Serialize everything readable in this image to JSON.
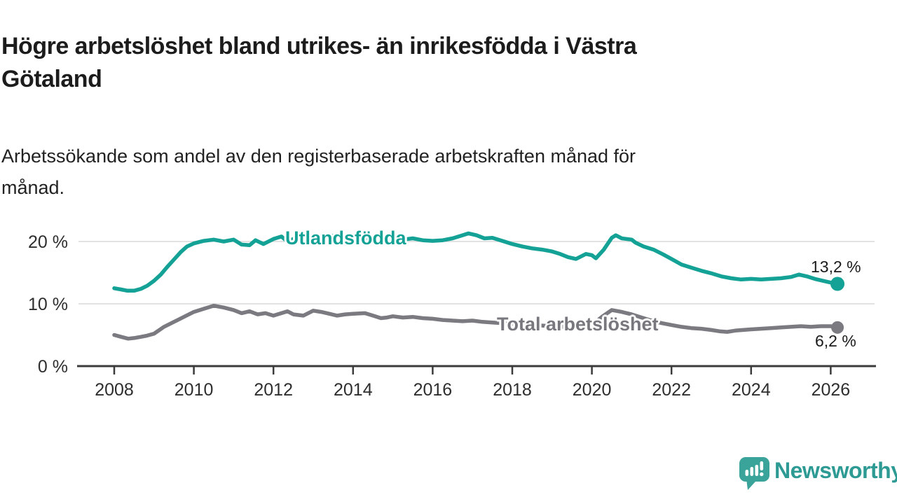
{
  "header": {
    "title": "Högre arbetslöshet bland utrikes- än inrikesfödda i Västra Götaland",
    "title_lines": [
      "Högre arbetslöshet bland utrikes- än inrikesfödda i Västra",
      "Götaland"
    ],
    "subtitle": "Arbetssökande som andel av den registerbaserade arbetskraften månad för månad.",
    "subtitle_lines": [
      "Arbetssökande som andel av den registerbaserade arbetskraften månad för",
      "månad."
    ]
  },
  "chart_data": {
    "type": "line",
    "title": "Högre arbetslöshet bland utrikes- än inrikesfödda i Västra Götaland",
    "subtitle": "Arbetssökande som andel av den registerbaserade arbetskraften månad för månad.",
    "grid": true,
    "legend_position": "inline-labels",
    "x_axis": {
      "ticks": [
        2008,
        2010,
        2012,
        2014,
        2016,
        2018,
        2020,
        2022,
        2024,
        2026
      ],
      "range": [
        2007.1,
        2027.1
      ]
    },
    "y_axis": {
      "ticks": [
        {
          "value": 0,
          "label": "0 %"
        },
        {
          "value": 10,
          "label": "10 %"
        },
        {
          "value": 20,
          "label": "20 %"
        }
      ],
      "range": [
        0,
        22.5
      ],
      "unit": "%"
    },
    "colors": {
      "accent_teal": "#14a296",
      "accent_gray": "#7a7a80",
      "gridline": "#d9d9d9",
      "axis": "#3b3b3b",
      "axis_text": "#2e2e2e"
    },
    "series": [
      {
        "name": "Utlandsfödda",
        "color": "#14a296",
        "end_label": "13,2 %",
        "end_value": 13.2,
        "points": [
          [
            2008.0,
            12.5
          ],
          [
            2008.17,
            12.3
          ],
          [
            2008.33,
            12.1
          ],
          [
            2008.5,
            12.1
          ],
          [
            2008.67,
            12.4
          ],
          [
            2008.83,
            12.9
          ],
          [
            2009.0,
            13.7
          ],
          [
            2009.17,
            14.7
          ],
          [
            2009.33,
            15.9
          ],
          [
            2009.5,
            17.1
          ],
          [
            2009.67,
            18.3
          ],
          [
            2009.83,
            19.2
          ],
          [
            2010.0,
            19.7
          ],
          [
            2010.25,
            20.1
          ],
          [
            2010.5,
            20.3
          ],
          [
            2010.75,
            20.0
          ],
          [
            2011.0,
            20.3
          ],
          [
            2011.2,
            19.5
          ],
          [
            2011.4,
            19.4
          ],
          [
            2011.55,
            20.2
          ],
          [
            2011.75,
            19.6
          ],
          [
            2012.0,
            20.4
          ],
          [
            2012.2,
            20.8
          ],
          [
            2012.35,
            20.0
          ],
          [
            2012.5,
            20.4
          ],
          [
            2012.75,
            20.6
          ],
          [
            2013.0,
            20.9
          ],
          [
            2013.25,
            20.7
          ],
          [
            2013.5,
            20.9
          ],
          [
            2013.75,
            20.6
          ],
          [
            2014.0,
            20.8
          ],
          [
            2014.25,
            20.5
          ],
          [
            2014.5,
            20.7
          ],
          [
            2014.75,
            20.4
          ],
          [
            2015.0,
            20.6
          ],
          [
            2015.25,
            20.3
          ],
          [
            2015.5,
            20.5
          ],
          [
            2015.75,
            20.2
          ],
          [
            2016.0,
            20.1
          ],
          [
            2016.25,
            20.2
          ],
          [
            2016.5,
            20.5
          ],
          [
            2016.75,
            21.0
          ],
          [
            2016.9,
            21.3
          ],
          [
            2017.1,
            21.0
          ],
          [
            2017.3,
            20.5
          ],
          [
            2017.5,
            20.6
          ],
          [
            2017.75,
            20.1
          ],
          [
            2018.0,
            19.6
          ],
          [
            2018.25,
            19.2
          ],
          [
            2018.5,
            18.9
          ],
          [
            2018.75,
            18.7
          ],
          [
            2019.0,
            18.4
          ],
          [
            2019.2,
            18.0
          ],
          [
            2019.4,
            17.5
          ],
          [
            2019.6,
            17.2
          ],
          [
            2019.85,
            18.0
          ],
          [
            2020.0,
            17.8
          ],
          [
            2020.1,
            17.3
          ],
          [
            2020.3,
            18.7
          ],
          [
            2020.5,
            20.6
          ],
          [
            2020.6,
            21.0
          ],
          [
            2020.75,
            20.5
          ],
          [
            2021.0,
            20.3
          ],
          [
            2021.1,
            19.8
          ],
          [
            2021.3,
            19.2
          ],
          [
            2021.55,
            18.7
          ],
          [
            2021.8,
            17.9
          ],
          [
            2022.0,
            17.2
          ],
          [
            2022.25,
            16.3
          ],
          [
            2022.5,
            15.8
          ],
          [
            2022.75,
            15.3
          ],
          [
            2023.0,
            14.9
          ],
          [
            2023.25,
            14.4
          ],
          [
            2023.5,
            14.1
          ],
          [
            2023.75,
            13.9
          ],
          [
            2024.0,
            14.0
          ],
          [
            2024.25,
            13.9
          ],
          [
            2024.5,
            14.0
          ],
          [
            2024.75,
            14.1
          ],
          [
            2025.0,
            14.3
          ],
          [
            2025.2,
            14.7
          ],
          [
            2025.4,
            14.4
          ],
          [
            2025.6,
            14.0
          ],
          [
            2025.8,
            13.7
          ],
          [
            2026.0,
            13.4
          ],
          [
            2026.17,
            13.2
          ]
        ]
      },
      {
        "name": "Total arbetslöshet",
        "color": "#7a7a80",
        "end_label": "6,2 %",
        "end_value": 6.2,
        "points": [
          [
            2008.0,
            5.0
          ],
          [
            2008.17,
            4.7
          ],
          [
            2008.35,
            4.4
          ],
          [
            2008.5,
            4.5
          ],
          [
            2008.67,
            4.7
          ],
          [
            2008.83,
            4.9
          ],
          [
            2009.0,
            5.2
          ],
          [
            2009.25,
            6.3
          ],
          [
            2009.5,
            7.1
          ],
          [
            2009.75,
            7.9
          ],
          [
            2010.0,
            8.7
          ],
          [
            2010.25,
            9.2
          ],
          [
            2010.5,
            9.7
          ],
          [
            2010.75,
            9.4
          ],
          [
            2011.0,
            9.0
          ],
          [
            2011.2,
            8.5
          ],
          [
            2011.4,
            8.8
          ],
          [
            2011.6,
            8.3
          ],
          [
            2011.8,
            8.5
          ],
          [
            2012.0,
            8.1
          ],
          [
            2012.2,
            8.5
          ],
          [
            2012.35,
            8.8
          ],
          [
            2012.5,
            8.3
          ],
          [
            2012.75,
            8.1
          ],
          [
            2013.0,
            8.9
          ],
          [
            2013.2,
            8.7
          ],
          [
            2013.4,
            8.4
          ],
          [
            2013.6,
            8.1
          ],
          [
            2013.8,
            8.3
          ],
          [
            2014.0,
            8.4
          ],
          [
            2014.3,
            8.5
          ],
          [
            2014.5,
            8.1
          ],
          [
            2014.7,
            7.7
          ],
          [
            2014.85,
            7.8
          ],
          [
            2015.0,
            8.0
          ],
          [
            2015.25,
            7.8
          ],
          [
            2015.5,
            7.9
          ],
          [
            2015.75,
            7.7
          ],
          [
            2016.0,
            7.6
          ],
          [
            2016.25,
            7.4
          ],
          [
            2016.5,
            7.3
          ],
          [
            2016.75,
            7.2
          ],
          [
            2017.0,
            7.3
          ],
          [
            2017.25,
            7.1
          ],
          [
            2017.5,
            7.0
          ],
          [
            2017.75,
            6.9
          ],
          [
            2018.0,
            6.8
          ],
          [
            2018.25,
            6.7
          ],
          [
            2018.5,
            6.6
          ],
          [
            2018.75,
            6.5
          ],
          [
            2019.0,
            6.4
          ],
          [
            2019.25,
            6.3
          ],
          [
            2019.5,
            6.3
          ],
          [
            2019.75,
            6.4
          ],
          [
            2020.0,
            6.6
          ],
          [
            2020.25,
            7.9
          ],
          [
            2020.5,
            9.0
          ],
          [
            2020.75,
            8.7
          ],
          [
            2021.0,
            8.3
          ],
          [
            2021.25,
            7.8
          ],
          [
            2021.5,
            7.3
          ],
          [
            2021.75,
            6.9
          ],
          [
            2022.0,
            6.6
          ],
          [
            2022.25,
            6.3
          ],
          [
            2022.5,
            6.1
          ],
          [
            2022.75,
            6.0
          ],
          [
            2023.0,
            5.8
          ],
          [
            2023.2,
            5.6
          ],
          [
            2023.4,
            5.5
          ],
          [
            2023.6,
            5.7
          ],
          [
            2023.8,
            5.8
          ],
          [
            2024.0,
            5.9
          ],
          [
            2024.25,
            6.0
          ],
          [
            2024.5,
            6.1
          ],
          [
            2024.75,
            6.2
          ],
          [
            2025.0,
            6.3
          ],
          [
            2025.25,
            6.4
          ],
          [
            2025.5,
            6.3
          ],
          [
            2025.75,
            6.4
          ],
          [
            2026.0,
            6.4
          ],
          [
            2026.17,
            6.2
          ]
        ]
      }
    ]
  },
  "footer": {
    "brand": "Newsworthy",
    "brand_text_color": "#2e9a94",
    "logo_color": "#3aa39a"
  }
}
